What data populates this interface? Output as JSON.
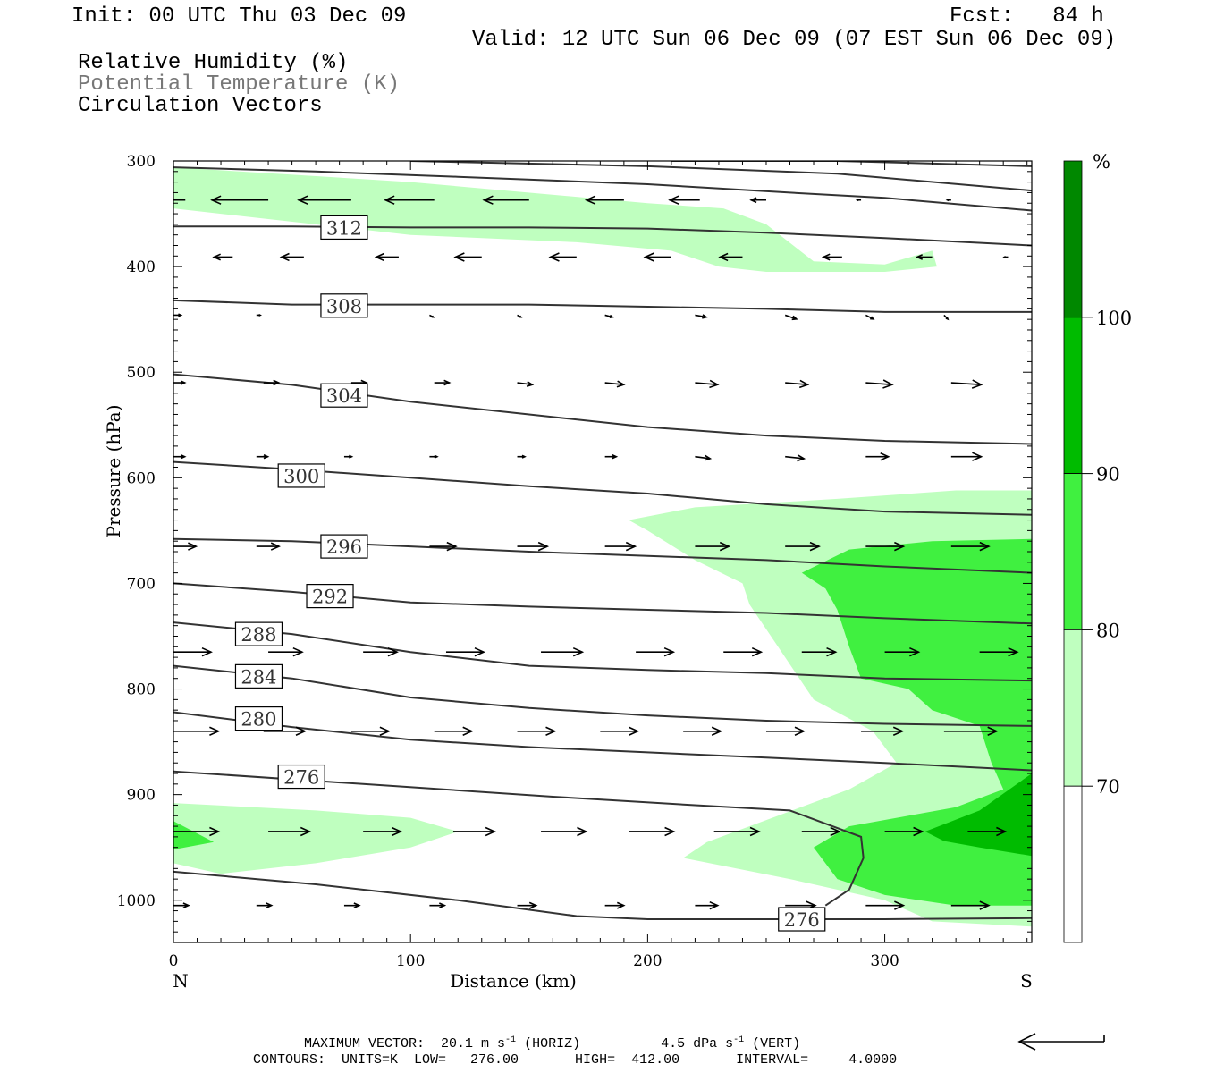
{
  "header": {
    "init": "Init: 00 UTC Thu 03 Dec 09",
    "fcst": "Fcst:   84 h",
    "valid": "Valid: 12 UTC Sun 06 Dec 09 (07 EST Sun 06 Dec 09)",
    "fields": [
      "Relative Humidity (%)",
      "Potential Temperature (K)",
      "Circulation Vectors"
    ]
  },
  "colors": {
    "rh70": "#bfffbf",
    "rh80": "#40f040",
    "rh90": "#00bb00",
    "rh100": "#008800",
    "contour": "#333333",
    "frame": "#000000"
  },
  "chart_data": {
    "type": "cross-section",
    "title": "Relative Humidity (%), Potential Temperature (K), Circulation Vectors",
    "xlabel": "Distance (km)",
    "ylabel": "Pressure (hPa)",
    "xlim": [
      0,
      362
    ],
    "ylim": [
      1040,
      300
    ],
    "x_ticks": [
      0,
      100,
      200,
      300
    ],
    "y_ticks": [
      300,
      400,
      500,
      600,
      700,
      800,
      900,
      1000
    ],
    "x_end_labels": {
      "left": "N",
      "right": "S"
    },
    "colorbar": {
      "unit": "%",
      "levels": [
        70,
        80,
        90,
        100
      ],
      "colors": [
        "#ffffff",
        "#bfffbf",
        "#40f040",
        "#00bb00",
        "#008800"
      ]
    },
    "rh_regions": [
      {
        "level": 70,
        "points": [
          [
            0,
            306
          ],
          [
            100,
            320
          ],
          [
            200,
            340
          ],
          [
            232,
            345
          ],
          [
            250,
            360
          ],
          [
            270,
            395
          ],
          [
            300,
            398
          ],
          [
            320,
            385
          ],
          [
            322,
            400
          ],
          [
            300,
            405
          ],
          [
            250,
            405
          ],
          [
            230,
            400
          ],
          [
            210,
            385
          ],
          [
            170,
            377
          ],
          [
            100,
            370
          ],
          [
            40,
            355
          ],
          [
            0,
            345
          ]
        ]
      },
      {
        "level": 70,
        "points": [
          [
            0,
            908
          ],
          [
            60,
            915
          ],
          [
            100,
            922
          ],
          [
            120,
            935
          ],
          [
            100,
            950
          ],
          [
            60,
            965
          ],
          [
            20,
            975
          ],
          [
            0,
            965
          ]
        ]
      },
      {
        "level": 80,
        "points": [
          [
            0,
            925
          ],
          [
            17,
            945
          ],
          [
            0,
            952
          ]
        ]
      },
      {
        "level": 70,
        "points": [
          [
            192,
            640
          ],
          [
            220,
            628
          ],
          [
            280,
            620
          ],
          [
            330,
            612
          ],
          [
            362,
            612
          ],
          [
            362,
            1025
          ],
          [
            320,
            1020
          ],
          [
            300,
            1000
          ],
          [
            260,
            980
          ],
          [
            215,
            960
          ],
          [
            225,
            945
          ],
          [
            255,
            920
          ],
          [
            285,
            895
          ],
          [
            305,
            870
          ],
          [
            295,
            840
          ],
          [
            270,
            810
          ],
          [
            255,
            760
          ],
          [
            243,
            720
          ],
          [
            240,
            700
          ],
          [
            220,
            678
          ],
          [
            200,
            650
          ]
        ]
      },
      {
        "level": 80,
        "points": [
          [
            265,
            690
          ],
          [
            285,
            668
          ],
          [
            320,
            660
          ],
          [
            362,
            658
          ],
          [
            362,
            1005
          ],
          [
            330,
            1005
          ],
          [
            300,
            995
          ],
          [
            280,
            980
          ],
          [
            270,
            950
          ],
          [
            285,
            930
          ],
          [
            330,
            912
          ],
          [
            350,
            895
          ],
          [
            345,
            870
          ],
          [
            340,
            835
          ],
          [
            320,
            820
          ],
          [
            310,
            800
          ],
          [
            290,
            790
          ],
          [
            285,
            760
          ],
          [
            280,
            725
          ],
          [
            275,
            705
          ]
        ]
      },
      {
        "level": 90,
        "points": [
          [
            317,
            935
          ],
          [
            340,
            915
          ],
          [
            362,
            880
          ],
          [
            362,
            958
          ],
          [
            340,
            950
          ],
          [
            325,
            944
          ]
        ]
      }
    ],
    "theta_contours": [
      {
        "value": 276,
        "label_at": [
          54,
          883
        ],
        "points": [
          [
            0,
            878
          ],
          [
            80,
            890
          ],
          [
            160,
            902
          ],
          [
            220,
            910
          ],
          [
            260,
            915
          ],
          [
            290,
            940
          ],
          [
            291,
            960
          ],
          [
            285,
            990
          ],
          [
            275,
            1005
          ]
        ]
      },
      {
        "value": 276,
        "label_at": [
          265,
          1018
        ],
        "points": [
          [
            0,
            973
          ],
          [
            60,
            985
          ],
          [
            120,
            1000
          ],
          [
            170,
            1015
          ],
          [
            200,
            1018
          ],
          [
            260,
            1018
          ],
          [
            300,
            1018
          ],
          [
            362,
            1017
          ]
        ]
      },
      {
        "value": 280,
        "label_at": [
          36,
          828
        ],
        "points": [
          [
            0,
            822
          ],
          [
            50,
            836
          ],
          [
            100,
            848
          ],
          [
            150,
            855
          ],
          [
            200,
            860
          ],
          [
            250,
            865
          ],
          [
            300,
            870
          ],
          [
            362,
            877
          ]
        ]
      },
      {
        "value": 284,
        "label_at": [
          36,
          788
        ],
        "points": [
          [
            0,
            778
          ],
          [
            50,
            790
          ],
          [
            100,
            808
          ],
          [
            150,
            818
          ],
          [
            200,
            825
          ],
          [
            250,
            830
          ],
          [
            300,
            833
          ],
          [
            362,
            835
          ]
        ]
      },
      {
        "value": 288,
        "label_at": [
          36,
          748
        ],
        "points": [
          [
            0,
            737
          ],
          [
            50,
            748
          ],
          [
            100,
            765
          ],
          [
            150,
            778
          ],
          [
            200,
            782
          ],
          [
            250,
            785
          ],
          [
            300,
            790
          ],
          [
            362,
            792
          ]
        ]
      },
      {
        "value": 292,
        "label_at": [
          66,
          712
        ],
        "points": [
          [
            0,
            700
          ],
          [
            50,
            708
          ],
          [
            100,
            718
          ],
          [
            150,
            722
          ],
          [
            200,
            725
          ],
          [
            250,
            728
          ],
          [
            300,
            733
          ],
          [
            362,
            738
          ]
        ]
      },
      {
        "value": 296,
        "label_at": [
          72,
          665
        ],
        "points": [
          [
            0,
            658
          ],
          [
            50,
            660
          ],
          [
            100,
            665
          ],
          [
            150,
            670
          ],
          [
            200,
            674
          ],
          [
            250,
            678
          ],
          [
            300,
            684
          ],
          [
            362,
            690
          ]
        ]
      },
      {
        "value": 300,
        "label_at": [
          54,
          598
        ],
        "points": [
          [
            0,
            585
          ],
          [
            50,
            592
          ],
          [
            100,
            600
          ],
          [
            150,
            608
          ],
          [
            200,
            615
          ],
          [
            250,
            625
          ],
          [
            300,
            632
          ],
          [
            362,
            635
          ]
        ]
      },
      {
        "value": 304,
        "label_at": [
          72,
          522
        ],
        "points": [
          [
            0,
            502
          ],
          [
            50,
            512
          ],
          [
            100,
            528
          ],
          [
            150,
            540
          ],
          [
            200,
            552
          ],
          [
            250,
            560
          ],
          [
            300,
            565
          ],
          [
            362,
            568
          ]
        ]
      },
      {
        "value": 308,
        "label_at": [
          72,
          437
        ],
        "points": [
          [
            0,
            432
          ],
          [
            50,
            436
          ],
          [
            100,
            436
          ],
          [
            150,
            436
          ],
          [
            200,
            438
          ],
          [
            250,
            440
          ],
          [
            300,
            443
          ],
          [
            362,
            443
          ]
        ]
      },
      {
        "value": 312,
        "label_at": [
          72,
          363
        ],
        "points": [
          [
            0,
            362
          ],
          [
            50,
            362
          ],
          [
            100,
            363
          ],
          [
            150,
            363
          ],
          [
            200,
            364
          ],
          [
            250,
            368
          ],
          [
            300,
            373
          ],
          [
            362,
            380
          ]
        ]
      },
      {
        "value": 316,
        "label_at": [
          null,
          null
        ],
        "points": [
          [
            0,
            306
          ],
          [
            60,
            310
          ],
          [
            120,
            315
          ],
          [
            200,
            322
          ],
          [
            260,
            330
          ],
          [
            300,
            335
          ],
          [
            362,
            347
          ]
        ]
      },
      {
        "value": 320,
        "label_at": [
          null,
          null
        ],
        "points": [
          [
            100,
            300
          ],
          [
            200,
            305
          ],
          [
            280,
            312
          ],
          [
            362,
            328
          ]
        ]
      },
      {
        "value": 324,
        "label_at": [
          null,
          null
        ],
        "points": [
          [
            210,
            300
          ],
          [
            280,
            300
          ],
          [
            362,
            305
          ]
        ]
      }
    ],
    "vectors": [
      {
        "p": 337,
        "x": [
          5,
          40,
          75,
          110,
          150,
          190,
          222,
          250,
          290,
          328
        ],
        "u": [
          -16,
          -15,
          -14,
          -13,
          -12,
          -10,
          -8,
          -4,
          -1,
          -1
        ],
        "w": [
          0,
          0,
          0,
          0,
          0,
          0,
          0,
          0,
          0,
          0
        ]
      },
      {
        "p": 391,
        "x": [
          25,
          55,
          95,
          130,
          170,
          210,
          240,
          282,
          320,
          352
        ],
        "u": [
          -5,
          -6,
          -6,
          -7,
          -7,
          -7,
          -6,
          -5,
          -4,
          -1
        ],
        "w": [
          0,
          0,
          0,
          0,
          0,
          0,
          0,
          0,
          0,
          0
        ]
      },
      {
        "p": 446,
        "x": [
          0,
          35,
          72,
          108,
          145,
          182,
          220,
          258,
          292,
          325
        ],
        "u": [
          2,
          1,
          0.5,
          1,
          1,
          2,
          3,
          3,
          2,
          1
        ],
        "w": [
          0,
          0,
          0,
          1,
          1,
          1,
          1,
          2,
          2,
          2
        ]
      },
      {
        "p": 510,
        "x": [
          0,
          38,
          75,
          110,
          145,
          182,
          220,
          258,
          292,
          328
        ],
        "u": [
          3,
          4,
          4,
          4,
          4,
          5,
          6,
          6,
          7,
          8
        ],
        "w": [
          0,
          0,
          0,
          0,
          1,
          1,
          1,
          1,
          1,
          1
        ]
      },
      {
        "p": 580,
        "x": [
          0,
          35,
          72,
          108,
          145,
          182,
          220,
          258,
          292,
          328
        ],
        "u": [
          3,
          3,
          2,
          2,
          2,
          3,
          4,
          5,
          6,
          8
        ],
        "w": [
          0,
          0,
          0,
          0,
          0,
          0,
          1,
          1,
          0,
          0
        ]
      },
      {
        "p": 665,
        "x": [
          0,
          35,
          72,
          108,
          145,
          182,
          220,
          258,
          292,
          328
        ],
        "u": [
          6,
          6,
          6,
          7,
          8,
          8,
          9,
          9,
          10,
          10
        ],
        "w": [
          0,
          0,
          0,
          0,
          0,
          0,
          0,
          0,
          0,
          0
        ]
      },
      {
        "p": 765,
        "x": [
          0,
          40,
          80,
          115,
          155,
          195,
          232,
          265,
          300,
          340
        ],
        "u": [
          10,
          9,
          9,
          10,
          11,
          10,
          10,
          9,
          9,
          10
        ],
        "w": [
          0,
          0,
          0,
          0,
          0,
          0,
          0,
          0,
          0,
          0
        ]
      },
      {
        "p": 840,
        "x": [
          0,
          38,
          75,
          110,
          145,
          180,
          215,
          250,
          290,
          325
        ],
        "u": [
          12,
          11,
          10,
          10,
          10,
          10,
          10,
          10,
          11,
          14
        ],
        "w": [
          0,
          0,
          0,
          0,
          0,
          0,
          0,
          0,
          0,
          0
        ]
      },
      {
        "p": 935,
        "x": [
          0,
          40,
          80,
          118,
          155,
          192,
          228,
          265,
          300,
          335
        ],
        "u": [
          12,
          11,
          10,
          11,
          12,
          12,
          12,
          10,
          10,
          10
        ],
        "w": [
          0,
          0,
          0,
          0,
          0,
          0,
          0,
          0,
          0,
          0
        ]
      },
      {
        "p": 1005,
        "x": [
          0,
          35,
          72,
          108,
          145,
          182,
          220,
          258,
          292,
          328
        ],
        "u": [
          4,
          4,
          4,
          4,
          5,
          5,
          6,
          8,
          10,
          10
        ],
        "w": [
          0,
          0,
          0,
          0,
          0,
          0,
          0,
          0,
          0,
          0
        ]
      }
    ]
  },
  "footer": {
    "max_vector_prefix": "MAXIMUM VECTOR:  20.1 m s",
    "max_vector_horiz": "(HORIZ)",
    "max_vector_vert_prefix": "4.5 dPa s",
    "max_vector_vert": "(VERT)",
    "exponent": "-1",
    "contours": "CONTOURS:  UNITS=K  LOW=   276.00       HIGH=  412.00       INTERVAL=     4.0000"
  }
}
